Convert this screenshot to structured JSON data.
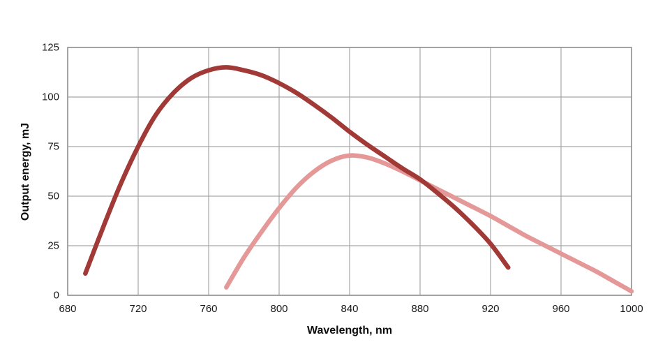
{
  "chart_data": {
    "type": "line",
    "title": "",
    "xlabel": "Wavelength, nm",
    "ylabel": "Output energy, mJ",
    "xlim": [
      680,
      1000
    ],
    "ylim": [
      0,
      125
    ],
    "x_ticks": [
      680,
      720,
      760,
      800,
      840,
      880,
      920,
      960,
      1000
    ],
    "y_ticks": [
      0,
      25,
      50,
      75,
      100,
      125
    ],
    "grid": true,
    "legend_position": "none",
    "series": [
      {
        "name": "pink-curve",
        "color": "#E59898",
        "peak": {
          "wavelength": 840,
          "energy": 70.5
        },
        "points": [
          [
            770,
            4
          ],
          [
            780,
            19
          ],
          [
            790,
            32
          ],
          [
            800,
            44
          ],
          [
            810,
            54.5
          ],
          [
            820,
            62.5
          ],
          [
            830,
            68
          ],
          [
            840,
            70.5
          ],
          [
            850,
            69.5
          ],
          [
            860,
            66.5
          ],
          [
            870,
            62.5
          ],
          [
            880,
            58
          ],
          [
            890,
            53.5
          ],
          [
            900,
            49
          ],
          [
            910,
            44.5
          ],
          [
            920,
            40
          ],
          [
            930,
            35
          ],
          [
            940,
            30
          ],
          [
            950,
            25.5
          ],
          [
            960,
            21
          ],
          [
            970,
            16.5
          ],
          [
            980,
            12
          ],
          [
            990,
            7
          ],
          [
            1000,
            2
          ]
        ]
      },
      {
        "name": "dark-red-curve",
        "color": "#A13937",
        "peak": {
          "wavelength": 770,
          "energy": 115
        },
        "points": [
          [
            690,
            11
          ],
          [
            700,
            34
          ],
          [
            710,
            56
          ],
          [
            720,
            75
          ],
          [
            730,
            91
          ],
          [
            740,
            102
          ],
          [
            750,
            109.5
          ],
          [
            760,
            113.5
          ],
          [
            770,
            115
          ],
          [
            780,
            113.5
          ],
          [
            790,
            111
          ],
          [
            800,
            107
          ],
          [
            810,
            102
          ],
          [
            820,
            96
          ],
          [
            830,
            89.5
          ],
          [
            840,
            82.5
          ],
          [
            850,
            76
          ],
          [
            860,
            70
          ],
          [
            870,
            64
          ],
          [
            880,
            58.5
          ],
          [
            890,
            51.5
          ],
          [
            900,
            44
          ],
          [
            910,
            35.5
          ],
          [
            920,
            26
          ],
          [
            930,
            14
          ]
        ]
      }
    ]
  },
  "colors": {
    "background": "#ffffff",
    "grid": "#a6a6a6",
    "plot_border": "#8c8c8c",
    "tick_text": "#1a1a1a",
    "axis_title_text": "#0d0d0d"
  }
}
